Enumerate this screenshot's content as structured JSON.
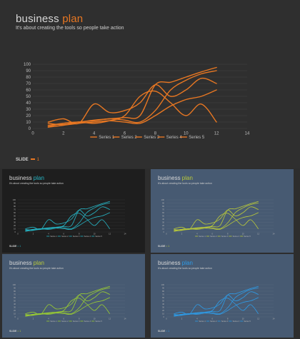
{
  "main": {
    "title_word1": "business",
    "title_word2": "plan",
    "subtitle": "It's about creating the tools so people take action",
    "slide_label": "SLIDE",
    "slide_number": "1"
  },
  "colors": {
    "background": "#2f2f2f",
    "accent": "#e87722",
    "text": "#d8d8d8",
    "axis_text": "#bfbfbf",
    "gridline": "#444444"
  },
  "thumbnails": [
    {
      "background": "#1e1e1e",
      "accent": "#26b5c5",
      "line_color": "#26b5c5"
    },
    {
      "background": "#475a72",
      "accent": "#b9c93a",
      "line_color": "#b9c93a"
    },
    {
      "background": "#475a72",
      "accent": "#b9c93a",
      "line_color": "#9acd32"
    },
    {
      "background": "#475a72",
      "accent": "#2e9be6",
      "line_color": "#2e9be6"
    }
  ],
  "chart_data": {
    "type": "line",
    "title": "",
    "xlabel": "",
    "ylabel": "",
    "xlim": [
      0,
      14
    ],
    "ylim": [
      0,
      100
    ],
    "x_ticks": [
      0,
      2,
      4,
      6,
      8,
      10,
      12,
      14
    ],
    "y_ticks": [
      0,
      10,
      20,
      30,
      40,
      50,
      60,
      70,
      80,
      90,
      100
    ],
    "grid": true,
    "legend_position": "bottom",
    "series": [
      {
        "name": "Series 1",
        "x": [
          1,
          2,
          3,
          4,
          5,
          6,
          7,
          8,
          9,
          10,
          11,
          12
        ],
        "values": [
          3,
          8,
          10,
          13,
          15,
          17,
          20,
          68,
          72,
          80,
          88,
          95
        ]
      },
      {
        "name": "Series 2",
        "x": [
          1,
          2,
          3,
          4,
          5,
          6,
          7,
          8,
          9,
          10,
          11,
          12
        ],
        "values": [
          10,
          15,
          8,
          38,
          25,
          28,
          40,
          68,
          50,
          60,
          78,
          70
        ]
      },
      {
        "name": "Series 3",
        "x": [
          1,
          2,
          3,
          4,
          5,
          6,
          7,
          8,
          9,
          10,
          11,
          12
        ],
        "values": [
          5,
          8,
          10,
          8,
          12,
          20,
          50,
          58,
          40,
          20,
          38,
          10
        ]
      },
      {
        "name": "Series 4",
        "x": [
          1,
          2,
          3,
          4,
          5,
          6,
          7,
          8,
          9,
          10,
          11,
          12
        ],
        "values": [
          8,
          6,
          10,
          12,
          15,
          13,
          10,
          28,
          60,
          75,
          85,
          90
        ]
      },
      {
        "name": "Series 5",
        "x": [
          1,
          2,
          3,
          4,
          5,
          6,
          7,
          8,
          9,
          10,
          11,
          12
        ],
        "values": [
          2,
          5,
          8,
          10,
          12,
          10,
          8,
          20,
          35,
          45,
          50,
          60
        ]
      }
    ]
  }
}
